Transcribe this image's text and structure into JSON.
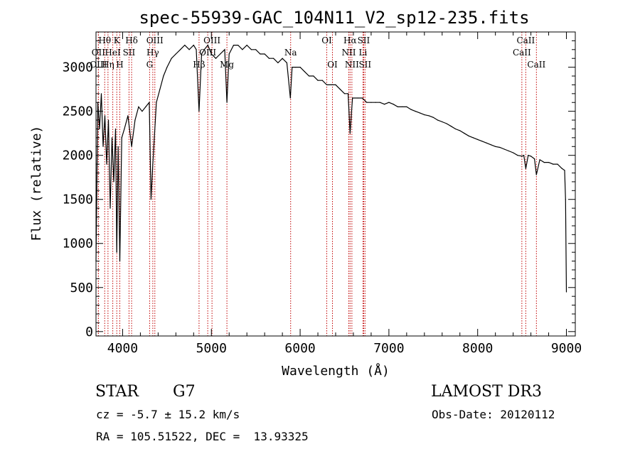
{
  "chart_data": {
    "type": "line",
    "title": "spec-55939-GAC_104N11_V2_sp12-235.fits",
    "xlabel": "Wavelength (Å)",
    "ylabel": "Flux (relative)",
    "xlim": [
      3700,
      9100
    ],
    "ylim": [
      -50,
      3400
    ],
    "xticks": [
      4000,
      5000,
      6000,
      7000,
      8000,
      9000
    ],
    "yticks": [
      0,
      500,
      1000,
      1500,
      2000,
      2500,
      3000
    ],
    "series": [
      {
        "name": "flux",
        "x": [
          3700,
          3720,
          3740,
          3760,
          3780,
          3800,
          3820,
          3840,
          3860,
          3880,
          3900,
          3920,
          3934,
          3950,
          3968,
          3990,
          4020,
          4060,
          4101,
          4140,
          4180,
          4220,
          4260,
          4300,
          4320,
          4340,
          4380,
          4420,
          4460,
          4500,
          4550,
          4600,
          4650,
          4700,
          4750,
          4800,
          4830,
          4861,
          4890,
          4920,
          4960,
          5000,
          5050,
          5100,
          5150,
          5175,
          5200,
          5250,
          5300,
          5350,
          5400,
          5450,
          5500,
          5550,
          5600,
          5650,
          5700,
          5750,
          5800,
          5850,
          5890,
          5910,
          5950,
          6000,
          6050,
          6100,
          6150,
          6200,
          6250,
          6300,
          6350,
          6400,
          6450,
          6500,
          6540,
          6563,
          6590,
          6650,
          6700,
          6750,
          6800,
          6850,
          6900,
          6950,
          7000,
          7050,
          7100,
          7150,
          7200,
          7250,
          7300,
          7350,
          7400,
          7450,
          7500,
          7550,
          7600,
          7650,
          7700,
          7750,
          7800,
          7850,
          7900,
          7950,
          8000,
          8050,
          8100,
          8150,
          8200,
          8250,
          8300,
          8350,
          8400,
          8450,
          8500,
          8520,
          8542,
          8570,
          8600,
          8640,
          8662,
          8700,
          8750,
          8800,
          8850,
          8900,
          8950,
          8980,
          8990,
          9000
        ],
        "y": [
          800,
          2600,
          2300,
          2700,
          2100,
          2450,
          1900,
          2400,
          1400,
          2200,
          1700,
          2300,
          900,
          2100,
          800,
          2200,
          2300,
          2450,
          2100,
          2400,
          2550,
          2500,
          2550,
          2600,
          1500,
          1900,
          2600,
          2750,
          2900,
          3000,
          3100,
          3150,
          3200,
          3250,
          3200,
          3250,
          3200,
          2500,
          3150,
          3200,
          3250,
          3150,
          3100,
          3150,
          3200,
          2600,
          3150,
          3250,
          3250,
          3200,
          3250,
          3200,
          3200,
          3150,
          3150,
          3100,
          3100,
          3050,
          3100,
          3050,
          2650,
          3000,
          3000,
          3000,
          2950,
          2900,
          2900,
          2850,
          2850,
          2800,
          2800,
          2800,
          2750,
          2700,
          2700,
          2250,
          2650,
          2650,
          2650,
          2600,
          2600,
          2600,
          2600,
          2580,
          2600,
          2580,
          2550,
          2550,
          2550,
          2520,
          2500,
          2480,
          2460,
          2450,
          2430,
          2400,
          2380,
          2360,
          2330,
          2300,
          2280,
          2250,
          2220,
          2200,
          2180,
          2160,
          2140,
          2120,
          2100,
          2090,
          2070,
          2050,
          2030,
          2000,
          1990,
          2000,
          1850,
          2000,
          1990,
          1960,
          1780,
          1950,
          1920,
          1920,
          1900,
          1900,
          1850,
          1830,
          1500,
          450
        ]
      }
    ],
    "lines": [
      {
        "label": "Hθ",
        "x": 3798,
        "row": 0
      },
      {
        "label": "OII",
        "x": 3727,
        "row": 1
      },
      {
        "label": "OIII",
        "x": 3727,
        "row": 2
      },
      {
        "label": "K",
        "x": 3934,
        "row": 0
      },
      {
        "label": "HeI",
        "x": 3889,
        "row": 1
      },
      {
        "label": "Hη",
        "x": 3835,
        "row": 2
      },
      {
        "label": "SII",
        "x": 4072,
        "row": 1
      },
      {
        "label": "H",
        "x": 3968,
        "row": 2
      },
      {
        "label": "Hδ",
        "x": 4101,
        "row": 0
      },
      {
        "label": "OIII",
        "x": 4363,
        "row": 0
      },
      {
        "label": "Hγ",
        "x": 4340,
        "row": 1
      },
      {
        "label": "G",
        "x": 4304,
        "row": 2
      },
      {
        "label": "OIII",
        "x": 5007,
        "row": 0
      },
      {
        "label": "OIII",
        "x": 4959,
        "row": 1
      },
      {
        "label": "Hβ",
        "x": 4861,
        "row": 2
      },
      {
        "label": "Mg",
        "x": 5175,
        "row": 2
      },
      {
        "label": "Na",
        "x": 5893,
        "row": 1
      },
      {
        "label": "OI",
        "x": 6300,
        "row": 0
      },
      {
        "label": "OI",
        "x": 6364,
        "row": 2
      },
      {
        "label": "Hα",
        "x": 6563,
        "row": 0
      },
      {
        "label": "SII",
        "x": 6716,
        "row": 0
      },
      {
        "label": "NII",
        "x": 6548,
        "row": 1
      },
      {
        "label": "Li",
        "x": 6708,
        "row": 1
      },
      {
        "label": "NII",
        "x": 6583,
        "row": 2
      },
      {
        "label": "SII",
        "x": 6731,
        "row": 2
      },
      {
        "label": "CaII",
        "x": 8542,
        "row": 0
      },
      {
        "label": "CaII",
        "x": 8498,
        "row": 1
      },
      {
        "label": "CaII",
        "x": 8662,
        "row": 2
      }
    ]
  },
  "info": {
    "classification": "STAR",
    "subclass": "G7",
    "survey": "LAMOST DR3",
    "redshift": "cz = -5.7 ± 15.2 km/s",
    "obs_date": "Obs-Date: 20120112",
    "coords": "RA = 105.51522, DEC =  13.93325"
  }
}
